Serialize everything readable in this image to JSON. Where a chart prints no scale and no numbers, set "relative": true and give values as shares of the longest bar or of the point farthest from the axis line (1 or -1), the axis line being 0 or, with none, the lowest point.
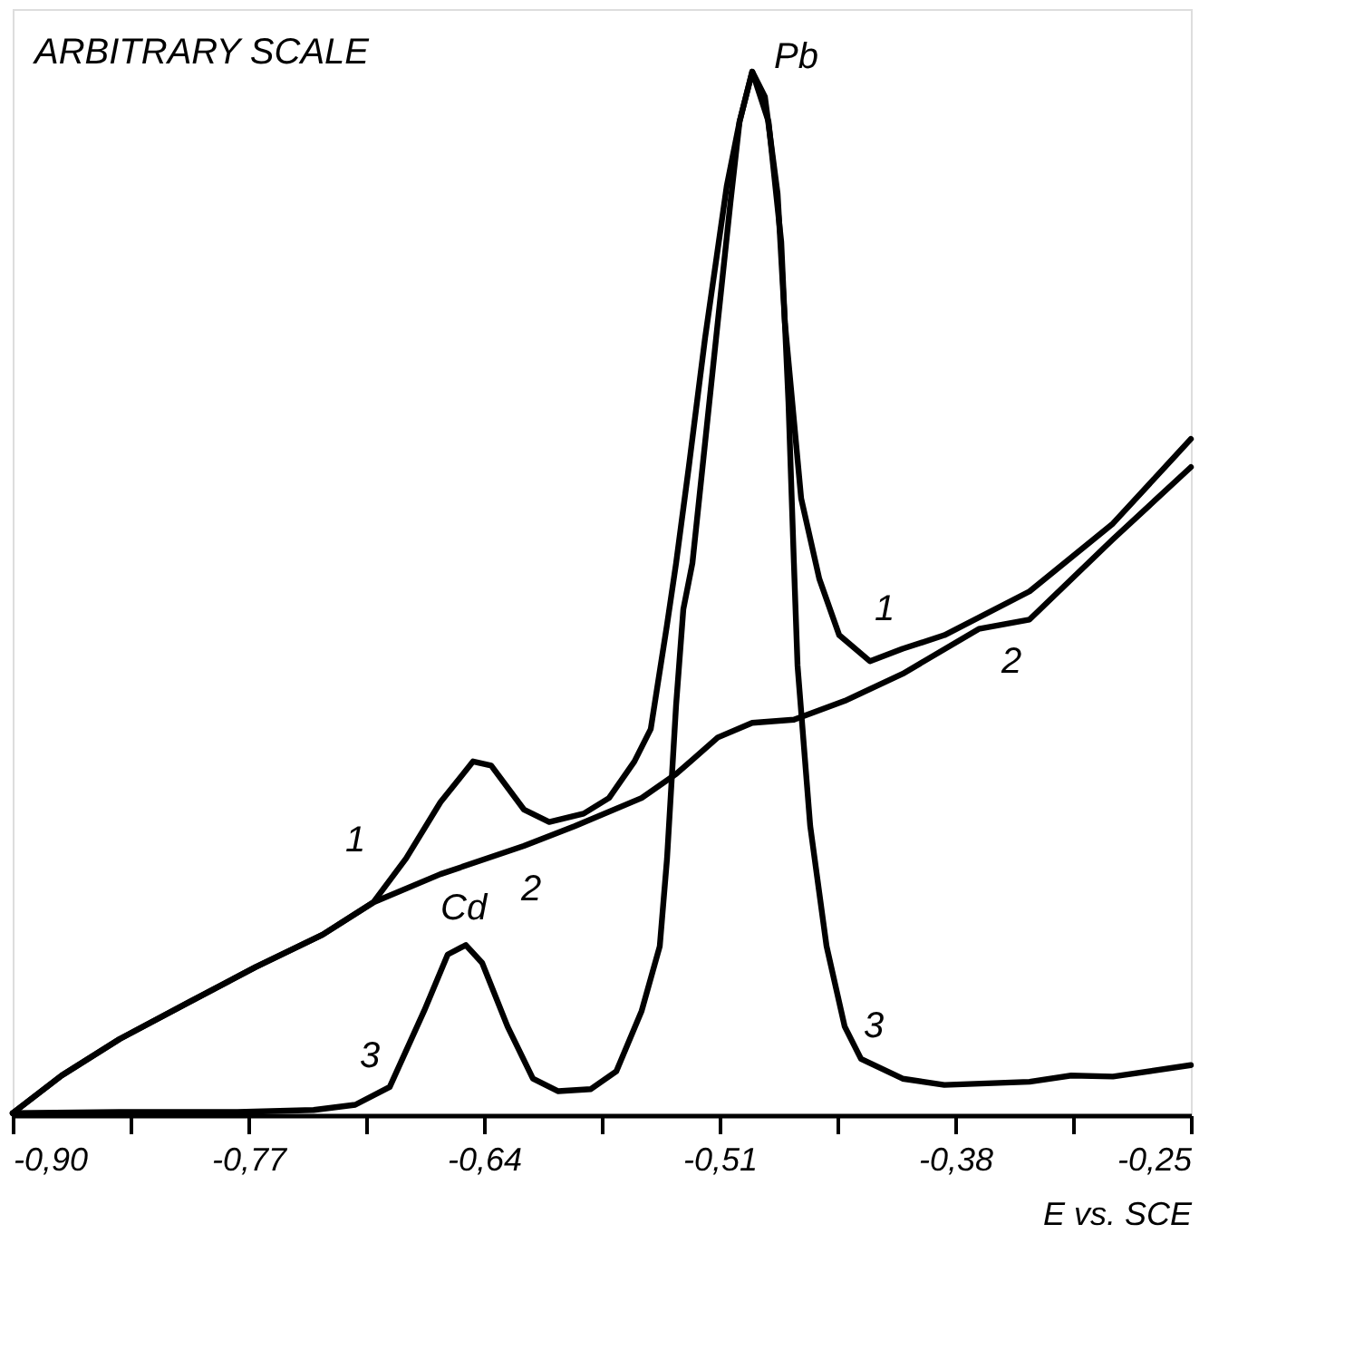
{
  "chart_data": {
    "type": "line",
    "relative": true,
    "xlabel": "E vs. SCE",
    "annotations": [
      "ARBITRARY SCALE",
      {
        "text": "Pb",
        "x": -0.492,
        "y": 1.0
      },
      {
        "text": "Cd",
        "x": -0.65,
        "y": 0.163
      }
    ],
    "xlim": [
      -0.9,
      -0.25
    ],
    "xticks": [
      {
        "value": -0.9,
        "label": "-0,90"
      },
      {
        "value": -0.835,
        "label": null
      },
      {
        "value": -0.77,
        "label": "-0,77"
      },
      {
        "value": -0.705,
        "label": null
      },
      {
        "value": -0.64,
        "label": "-0,64"
      },
      {
        "value": -0.575,
        "label": null
      },
      {
        "value": -0.51,
        "label": "-0,51"
      },
      {
        "value": -0.445,
        "label": null
      },
      {
        "value": -0.38,
        "label": "-0,38"
      },
      {
        "value": -0.315,
        "label": null
      },
      {
        "value": -0.25,
        "label": "-0,25"
      }
    ],
    "grid": false,
    "series": [
      {
        "name": "1",
        "color": "#000000",
        "x": [
          -0.9,
          -0.873,
          -0.841,
          -0.803,
          -0.766,
          -0.729,
          -0.701,
          -0.683,
          -0.664,
          -0.646,
          -0.636,
          -0.618,
          -0.604,
          -0.585,
          -0.571,
          -0.557,
          -0.548,
          -0.539,
          -0.534,
          -0.527,
          -0.518,
          -0.506,
          -0.499,
          -0.492,
          -0.485,
          -0.478,
          -0.474,
          -0.465,
          -0.455,
          -0.444,
          -0.427,
          -0.409,
          -0.386,
          -0.339,
          -0.293,
          -0.25
        ],
        "values": [
          0.002,
          0.038,
          0.073,
          0.108,
          0.142,
          0.173,
          0.204,
          0.246,
          0.3,
          0.339,
          0.335,
          0.293,
          0.281,
          0.289,
          0.304,
          0.339,
          0.37,
          0.47,
          0.529,
          0.621,
          0.745,
          0.891,
          0.952,
          1.0,
          0.976,
          0.883,
          0.76,
          0.591,
          0.514,
          0.46,
          0.435,
          0.447,
          0.46,
          0.502,
          0.567,
          0.648
        ]
      },
      {
        "name": "2",
        "color": "#000000",
        "x": [
          -0.9,
          -0.873,
          -0.841,
          -0.803,
          -0.766,
          -0.729,
          -0.701,
          -0.664,
          -0.618,
          -0.59,
          -0.553,
          -0.534,
          -0.511,
          -0.492,
          -0.469,
          -0.441,
          -0.409,
          -0.367,
          -0.339,
          -0.293,
          -0.25
        ],
        "values": [
          0.002,
          0.038,
          0.073,
          0.108,
          0.142,
          0.173,
          0.204,
          0.231,
          0.258,
          0.277,
          0.304,
          0.327,
          0.362,
          0.376,
          0.379,
          0.397,
          0.423,
          0.466,
          0.475,
          0.552,
          0.621
        ]
      },
      {
        "name": "3",
        "color": "#000000",
        "x": [
          -0.9,
          -0.841,
          -0.776,
          -0.734,
          -0.711,
          -0.692,
          -0.673,
          -0.66,
          -0.65,
          -0.641,
          -0.627,
          -0.613,
          -0.599,
          -0.581,
          -0.567,
          -0.553,
          -0.543,
          -0.539,
          -0.534,
          -0.53,
          -0.525,
          -0.511,
          -0.504,
          -0.499,
          -0.492,
          -0.483,
          -0.476,
          -0.472,
          -0.469,
          -0.467,
          -0.46,
          -0.451,
          -0.441,
          -0.432,
          -0.409,
          -0.386,
          -0.339,
          -0.316,
          -0.293,
          -0.25
        ],
        "values": [
          0.002,
          0.003,
          0.003,
          0.005,
          0.01,
          0.027,
          0.1,
          0.154,
          0.163,
          0.146,
          0.085,
          0.035,
          0.023,
          0.025,
          0.042,
          0.1,
          0.162,
          0.246,
          0.393,
          0.485,
          0.529,
          0.76,
          0.875,
          0.952,
          1.0,
          0.952,
          0.837,
          0.683,
          0.529,
          0.431,
          0.277,
          0.162,
          0.085,
          0.054,
          0.035,
          0.029,
          0.032,
          0.038,
          0.037,
          0.048
        ]
      }
    ]
  }
}
